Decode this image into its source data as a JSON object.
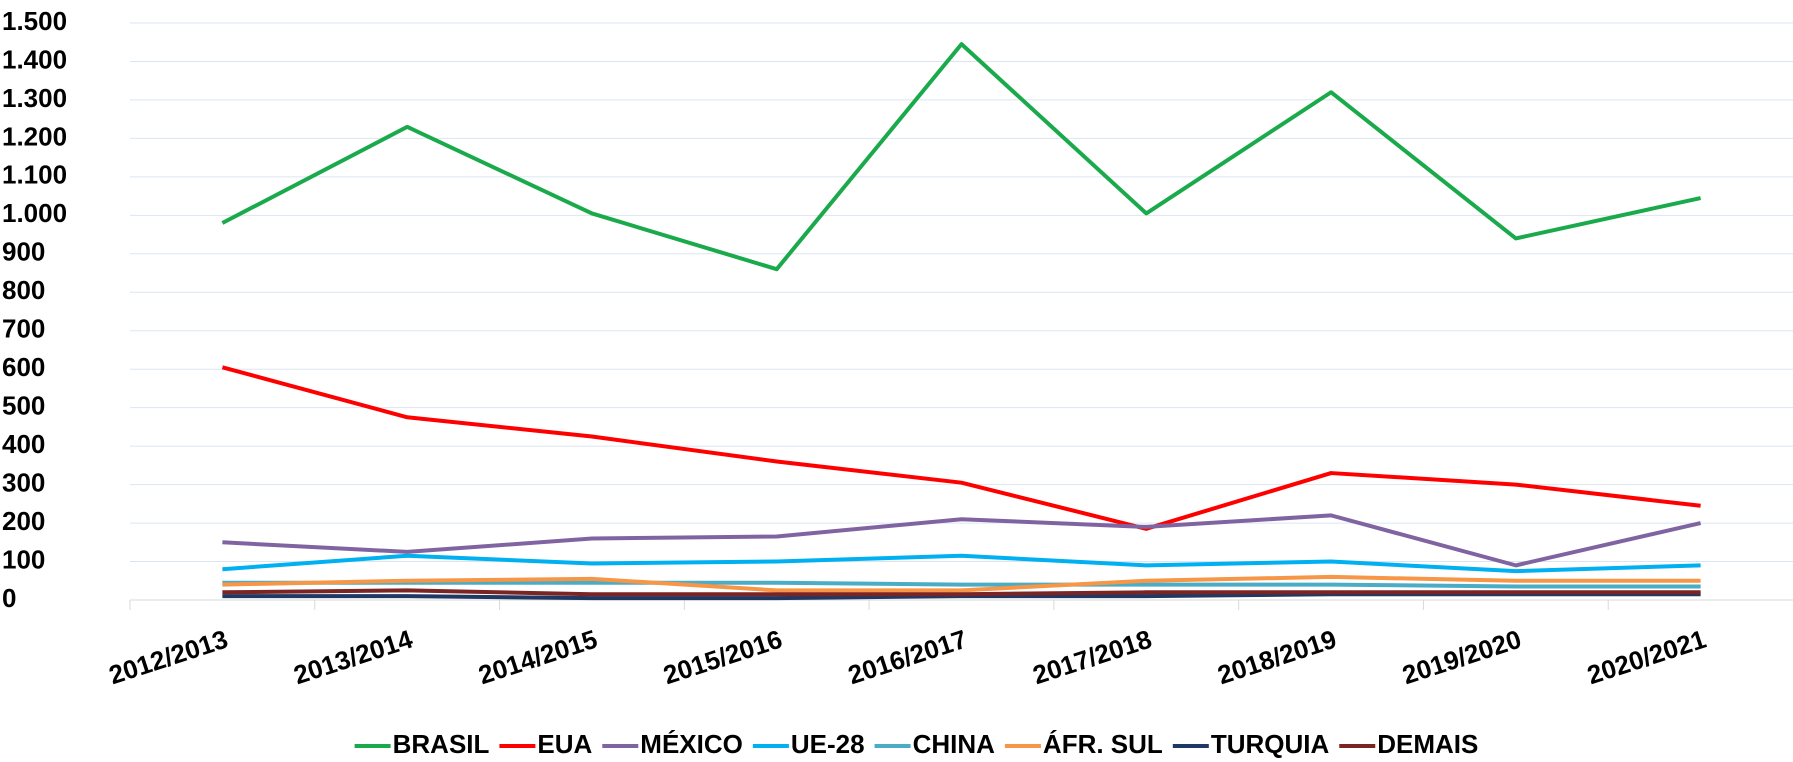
{
  "chart_data": {
    "type": "line",
    "categories": [
      "2012/2013",
      "2013/2014",
      "2014/2015",
      "2015/2016",
      "2016/2017",
      "2017/2018",
      "2018/2019",
      "2019/2020",
      "2020/2021"
    ],
    "series": [
      {
        "name": "BRASIL",
        "color": "#1aaa4b",
        "values": [
          980,
          1230,
          1005,
          860,
          1445,
          1005,
          1320,
          940,
          1045
        ]
      },
      {
        "name": "EUA",
        "color": "#ff0000",
        "values": [
          605,
          475,
          425,
          360,
          305,
          185,
          330,
          300,
          245
        ]
      },
      {
        "name": "MÉXICO",
        "color": "#8064a2",
        "values": [
          150,
          125,
          160,
          165,
          210,
          190,
          220,
          90,
          200
        ]
      },
      {
        "name": "UE-28",
        "color": "#00b0f0",
        "values": [
          80,
          115,
          95,
          100,
          115,
          90,
          100,
          75,
          90
        ]
      },
      {
        "name": "CHINA",
        "color": "#4bacc6",
        "values": [
          45,
          45,
          45,
          45,
          40,
          40,
          40,
          35,
          35
        ]
      },
      {
        "name": "ÁFR. SUL",
        "color": "#f79646",
        "values": [
          40,
          50,
          55,
          25,
          25,
          50,
          60,
          50,
          50
        ]
      },
      {
        "name": "TURQUIA",
        "color": "#1f3864",
        "values": [
          10,
          10,
          5,
          5,
          10,
          10,
          15,
          15,
          15
        ]
      },
      {
        "name": "DEMAIS",
        "color": "#7b2424",
        "values": [
          20,
          25,
          15,
          15,
          15,
          20,
          20,
          20,
          20
        ]
      }
    ],
    "ylim": [
      0,
      1500
    ],
    "yticks": [
      0,
      100,
      200,
      300,
      400,
      500,
      600,
      700,
      800,
      900,
      {
        "value": 1000,
        "label": "1.000"
      },
      {
        "value": 1100,
        "label": "1.100"
      },
      {
        "value": 1200,
        "label": "1.200"
      },
      {
        "value": 1300,
        "label": "1.300"
      },
      {
        "value": 1400,
        "label": "1.400"
      },
      {
        "value": 1500,
        "label": "1.500"
      }
    ],
    "grid": true,
    "legend": "bottom"
  }
}
